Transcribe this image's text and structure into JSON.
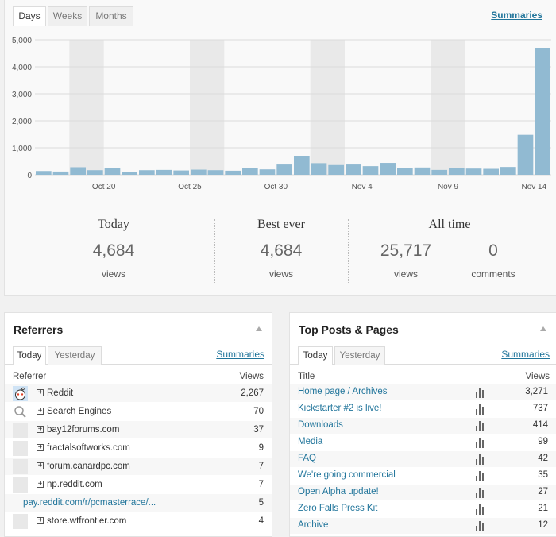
{
  "tabs": {
    "days": "Days",
    "weeks": "Weeks",
    "months": "Months"
  },
  "summaries_label": "Summaries",
  "chart_data": {
    "type": "bar",
    "yticks": [
      "5,000",
      "4,000",
      "3,000",
      "2,000",
      "1,000",
      "0"
    ],
    "ylim": [
      0,
      5000
    ],
    "xticks": [
      "Oct 20",
      "Oct 25",
      "Oct 30",
      "Nov 4",
      "Nov 9",
      "Nov 14"
    ],
    "values": [
      140,
      120,
      280,
      170,
      260,
      100,
      170,
      180,
      160,
      190,
      170,
      150,
      260,
      200,
      380,
      680,
      430,
      360,
      380,
      320,
      440,
      240,
      270,
      180,
      240,
      230,
      220,
      290,
      1480,
      4684
    ],
    "bar_color": "#91bad2",
    "band_color": "#e9e9e9",
    "grid": true
  },
  "summary": {
    "today": {
      "title": "Today",
      "value": "4,684",
      "label": "views"
    },
    "best": {
      "title": "Best ever",
      "value": "4,684",
      "label": "views"
    },
    "alltime": {
      "title": "All time",
      "views": "25,717",
      "views_label": "views",
      "comments": "0",
      "comments_label": "comments"
    }
  },
  "referrers": {
    "title": "Referrers",
    "tab_today": "Today",
    "tab_yesterday": "Yesterday",
    "summaries": "Summaries",
    "col_referrer": "Referrer",
    "col_views": "Views",
    "rows": [
      {
        "name": "Reddit",
        "views": "2,267"
      },
      {
        "name": "Search Engines",
        "views": "70"
      },
      {
        "name": "bay12forums.com",
        "views": "37"
      },
      {
        "name": "fractalsoftworks.com",
        "views": "9"
      },
      {
        "name": "forum.canardpc.com",
        "views": "7"
      },
      {
        "name": "np.reddit.com",
        "views": "7"
      },
      {
        "name": "pay.reddit.com/r/pcmasterrace/...",
        "views": "5"
      },
      {
        "name": "store.wtfrontier.com",
        "views": "4"
      }
    ]
  },
  "top_posts": {
    "title": "Top Posts & Pages",
    "tab_today": "Today",
    "tab_yesterday": "Yesterday",
    "summaries": "Summaries",
    "col_title": "Title",
    "col_views": "Views",
    "rows": [
      {
        "name": "Home page / Archives",
        "views": "3,271"
      },
      {
        "name": "Kickstarter #2 is live!",
        "views": "737"
      },
      {
        "name": "Downloads",
        "views": "414"
      },
      {
        "name": "Media",
        "views": "99"
      },
      {
        "name": "FAQ",
        "views": "42"
      },
      {
        "name": "We're going commercial",
        "views": "35"
      },
      {
        "name": "Open Alpha update!",
        "views": "27"
      },
      {
        "name": "Zero Falls Press Kit",
        "views": "21"
      },
      {
        "name": "Archive",
        "views": "12"
      }
    ]
  }
}
